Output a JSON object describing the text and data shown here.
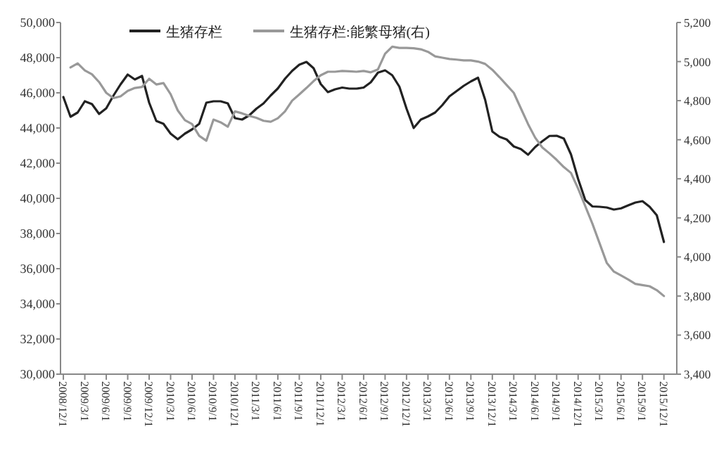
{
  "chart_data": {
    "type": "line",
    "categories": [
      "2008/12/1",
      null,
      null,
      "2009/3/1",
      null,
      null,
      "2009/6/1",
      null,
      null,
      "2009/9/1",
      null,
      null,
      "2009/12/1",
      null,
      null,
      "2010/3/1",
      null,
      null,
      "2010/6/1",
      null,
      null,
      "2010/9/1",
      null,
      null,
      "2010/12/1",
      null,
      null,
      "2011/3/1",
      null,
      null,
      "2011/6/1",
      null,
      null,
      "2011/9/1",
      null,
      null,
      "2011/12/1",
      null,
      null,
      "2012/3/1",
      null,
      null,
      "2012/6/1",
      null,
      null,
      "2012/9/1",
      null,
      null,
      "2012/12/1",
      null,
      null,
      "2013/3/1",
      null,
      null,
      "2013/6/1",
      null,
      null,
      "2013/9/1",
      null,
      null,
      "2013/12/1",
      null,
      null,
      "2014/3/1",
      null,
      null,
      "2014/6/1",
      null,
      null,
      "2014/9/1",
      null,
      null,
      "2014/12/1",
      null,
      null,
      "2015/3/1",
      null,
      null,
      "2015/6/1",
      null,
      null,
      "2015/9/1",
      null,
      null,
      "2015/12/1"
    ],
    "series": [
      {
        "name": "生猪存栏",
        "color": "#222222",
        "values": [
          45760,
          44640,
          44880,
          45520,
          45360,
          44800,
          45120,
          45840,
          46480,
          47040,
          46760,
          46960,
          45440,
          44400,
          44240,
          43680,
          43360,
          43680,
          43920,
          44240,
          45440,
          45520,
          45520,
          45400,
          44560,
          44480,
          44720,
          45100,
          45400,
          45850,
          46250,
          46800,
          47250,
          47600,
          47760,
          47400,
          46500,
          46040,
          46200,
          46300,
          46240,
          46240,
          46300,
          46600,
          47150,
          47280,
          47000,
          46350,
          45100,
          44000,
          44480,
          44660,
          44880,
          45300,
          45800,
          46100,
          46400,
          46650,
          46860,
          45600,
          43800,
          43500,
          43350,
          42950,
          42800,
          42480,
          42920,
          43250,
          43550,
          43560,
          43400,
          42500,
          41100,
          39900,
          39540,
          39520,
          39480,
          39360,
          39430,
          39600,
          39760,
          39840,
          39520,
          39040,
          37520
        ]
      },
      {
        "name": "生猪存栏:能繁母猪(右)",
        "color": "#999999",
        "axis": "y2",
        "values": [
          null,
          4970,
          4991,
          4955,
          4935,
          4895,
          4840,
          4813,
          4822,
          4850,
          4865,
          4870,
          4912,
          4883,
          4890,
          4833,
          4750,
          4700,
          4680,
          4620,
          4595,
          4703,
          4689,
          4667,
          4745,
          4735,
          4722,
          4712,
          4697,
          4692,
          4710,
          4745,
          4800,
          4832,
          4865,
          4900,
          4930,
          4948,
          4948,
          4952,
          4950,
          4948,
          4952,
          4945,
          4960,
          5040,
          5076,
          5070,
          5070,
          5068,
          5063,
          5050,
          5027,
          5020,
          5013,
          5010,
          5006,
          5006,
          5000,
          4988,
          4958,
          4920,
          4880,
          4840,
          4760,
          4680,
          4610,
          4560,
          4530,
          4497,
          4460,
          4430,
          4350,
          4260,
          4170,
          4070,
          3970,
          3925,
          3905,
          3885,
          3862,
          3856,
          3850,
          3830,
          3800
        ]
      }
    ],
    "ylim": [
      30000,
      50000
    ],
    "yticks": [
      {
        "value": 30000,
        "label": "30,000"
      },
      {
        "value": 32000,
        "label": "32,000"
      },
      {
        "value": 34000,
        "label": "34,000"
      },
      {
        "value": 36000,
        "label": "36,000"
      },
      {
        "value": 38000,
        "label": "38,000"
      },
      {
        "value": 40000,
        "label": "40,000"
      },
      {
        "value": 42000,
        "label": "42,000"
      },
      {
        "value": 44000,
        "label": "44,000"
      },
      {
        "value": 46000,
        "label": "46,000"
      },
      {
        "value": 48000,
        "label": "48,000"
      },
      {
        "value": 50000,
        "label": "50,000"
      }
    ],
    "y2lim": [
      3400,
      5200
    ],
    "y2ticks": [
      {
        "value": 3400,
        "label": "3,400"
      },
      {
        "value": 3600,
        "label": "3,600"
      },
      {
        "value": 3800,
        "label": "3,800"
      },
      {
        "value": 4000,
        "label": "4,000"
      },
      {
        "value": 4200,
        "label": "4,200"
      },
      {
        "value": 4400,
        "label": "4,400"
      },
      {
        "value": 4600,
        "label": "4,600"
      },
      {
        "value": 4800,
        "label": "4,800"
      },
      {
        "value": 5000,
        "label": "5,000"
      },
      {
        "value": 5200,
        "label": "5,200"
      }
    ],
    "grid": false,
    "legend": "top"
  }
}
